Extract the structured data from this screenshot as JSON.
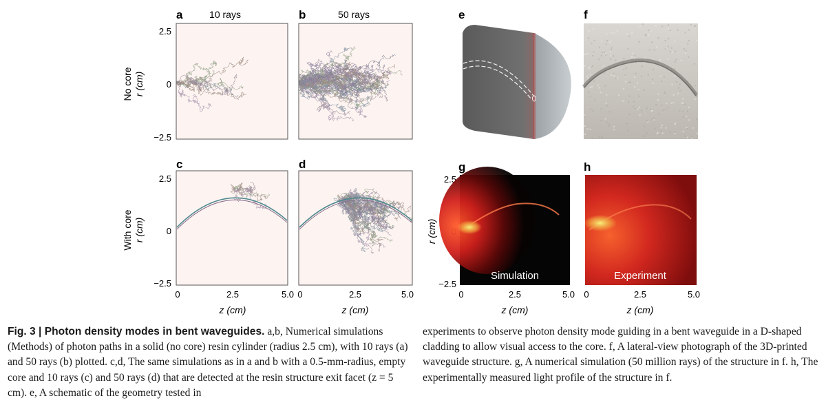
{
  "panels": {
    "a": {
      "letter": "a",
      "title": "10 rays"
    },
    "b": {
      "letter": "b",
      "title": "50 rays"
    },
    "c": {
      "letter": "c"
    },
    "d": {
      "letter": "d"
    },
    "e": {
      "letter": "e"
    },
    "f": {
      "letter": "f"
    },
    "g": {
      "letter": "g",
      "overlay": "Simulation"
    },
    "h": {
      "letter": "h",
      "overlay": "Experiment"
    }
  },
  "rows": {
    "top": {
      "condition": "No core",
      "ylabel": "r (cm)"
    },
    "bottom": {
      "condition": "With core",
      "ylabel": "r (cm)"
    },
    "gh_ylabel": "r (cm)"
  },
  "axes": {
    "yticks": [
      "2.5",
      "0",
      "−2.5"
    ],
    "xticks": [
      "0",
      "2.5",
      "5.0"
    ],
    "xlabel": "z (cm)"
  },
  "colors": {
    "plot_bg": "#fdf4f1",
    "heatmap_bg": "#050505",
    "glow_red": "#e8281e",
    "glow_yellow": "#f4e85a"
  },
  "caption": {
    "fig_label": "Fig. 3 | Photon density modes in bent waveguides.",
    "left_body": " a,b, Numerical simulations (Methods) of photon paths in a solid (no core) resin cylinder (radius 2.5 cm), with 10 rays (a) and 50 rays (b) plotted. c,d, The same simulations as in a and b with a 0.5-mm-radius, empty core and 10 rays (c) and 50 rays (d) that are detected at the resin structure exit facet (z = 5 cm). e, A schematic of the geometry tested in",
    "right_body": "experiments to observe photon density mode guiding in a bent waveguide in a D-shaped cladding to allow visual access to the core. f, A lateral-view photograph of the 3D-printed waveguide structure. g, A numerical simulation (50 million rays) of the structure in f. h, The experimentally measured light profile of the structure in f."
  }
}
